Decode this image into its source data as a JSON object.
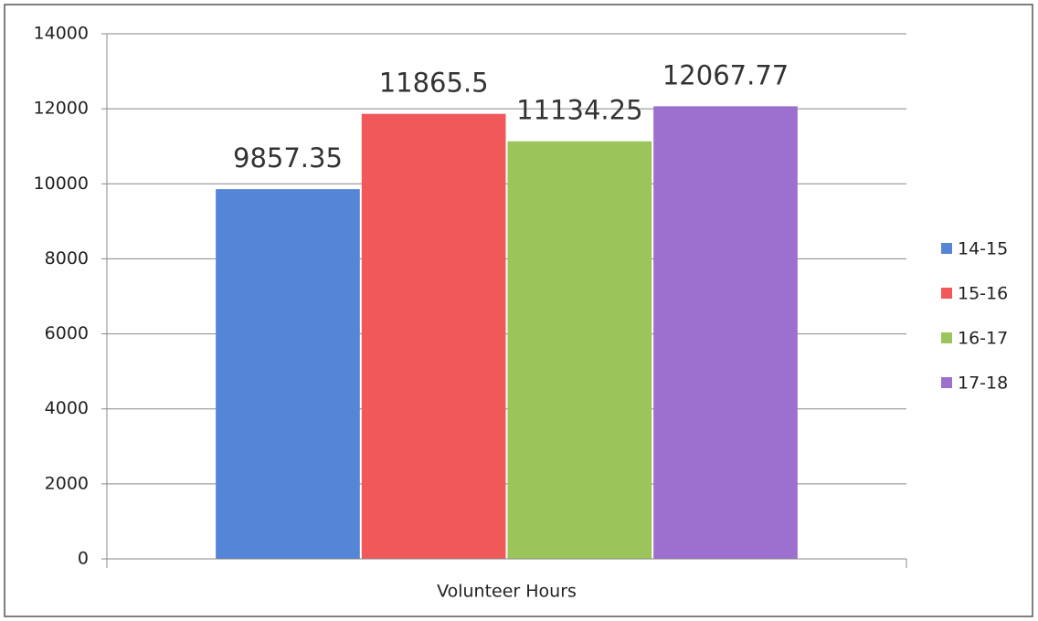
{
  "chart_data": {
    "type": "bar",
    "categories": [
      "Volunteer Hours"
    ],
    "series": [
      {
        "name": "14-15",
        "color": "#5585d6",
        "values": [
          9857.35
        ]
      },
      {
        "name": "15-16",
        "color": "#f0585a",
        "values": [
          11865.5
        ]
      },
      {
        "name": "16-17",
        "color": "#9bc45a",
        "values": [
          11134.25
        ]
      },
      {
        "name": "17-18",
        "color": "#9d70cf",
        "values": [
          12067.77
        ]
      }
    ],
    "ylim": [
      0,
      14000
    ],
    "yticks": [
      0,
      2000,
      4000,
      6000,
      8000,
      10000,
      12000,
      14000
    ],
    "grid": true,
    "legend": "right"
  }
}
